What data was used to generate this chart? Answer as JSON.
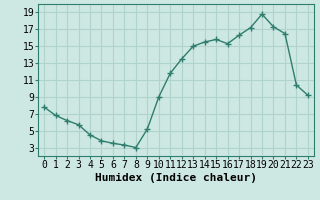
{
  "x": [
    0,
    1,
    2,
    3,
    4,
    5,
    6,
    7,
    8,
    9,
    10,
    11,
    12,
    13,
    14,
    15,
    16,
    17,
    18,
    19,
    20,
    21,
    22,
    23
  ],
  "y": [
    7.8,
    6.8,
    6.2,
    5.7,
    4.5,
    3.8,
    3.5,
    3.3,
    3.0,
    5.2,
    9.0,
    11.8,
    13.5,
    15.0,
    15.5,
    15.8,
    15.3,
    16.3,
    17.2,
    18.8,
    17.3,
    16.5,
    10.4,
    9.2
  ],
  "line_color": "#2e7d6e",
  "marker": "+",
  "marker_size": 4,
  "marker_lw": 1.0,
  "background_color": "#cde8e2",
  "grid_color": "#b0d4cc",
  "xlabel": "Humidex (Indice chaleur)",
  "xlim": [
    -0.5,
    23.5
  ],
  "ylim": [
    2.0,
    20.0
  ],
  "yticks": [
    3,
    5,
    7,
    9,
    11,
    13,
    15,
    17,
    19
  ],
  "xticks": [
    0,
    1,
    2,
    3,
    4,
    5,
    6,
    7,
    8,
    9,
    10,
    11,
    12,
    13,
    14,
    15,
    16,
    17,
    18,
    19,
    20,
    21,
    22,
    23
  ],
  "xlabel_fontsize": 8,
  "tick_fontsize": 7,
  "line_width": 1.0
}
